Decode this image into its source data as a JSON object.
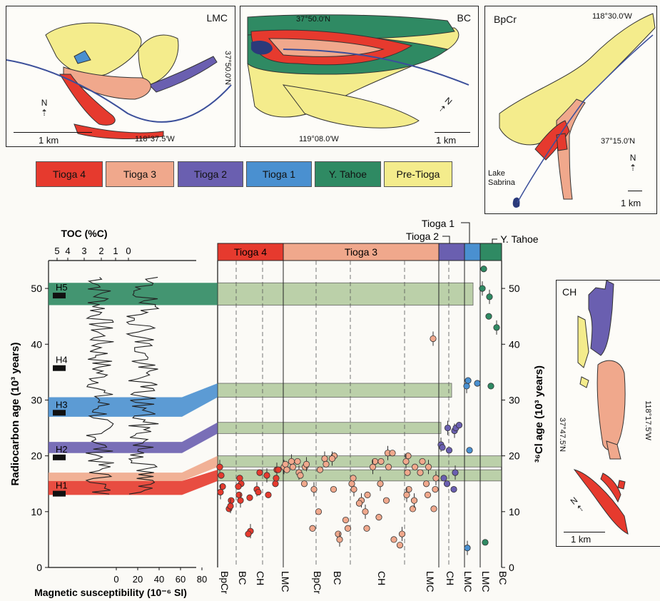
{
  "maps": {
    "lmc": {
      "title": "LMC",
      "lat": "37°50.0′N",
      "lon": "118°37.5′W",
      "scale": "1 km",
      "north": "N"
    },
    "bc": {
      "title": "BC",
      "lat": "37°50.0′N",
      "lon": "119°08.0′W",
      "scale": "1 km",
      "north": "N"
    },
    "bpcr": {
      "title": "BpCr",
      "lon": "118°30.0′W",
      "lat": "37°15.0′N",
      "lake": "Lake Sabrina",
      "scale": "1 km",
      "north": "N"
    },
    "ch": {
      "title": "CH",
      "lat": "37°47.5′N",
      "lon": "118°17.5′W",
      "scale": "1 km",
      "north": "N"
    }
  },
  "legend": [
    {
      "label": "Tioga 4",
      "color": "#e63a2e"
    },
    {
      "label": "Tioga 3",
      "color": "#f0a88c"
    },
    {
      "label": "Tioga 2",
      "color": "#6a5fb0"
    },
    {
      "label": "Tioga 1",
      "color": "#4a90d0"
    },
    {
      "label": "Y. Tahoe",
      "color": "#2f8a63"
    },
    {
      "label": "Pre-Tioga",
      "color": "#f4ec8c"
    }
  ],
  "chart": {
    "toc_label": "TOC (%C)",
    "toc_ticks": [
      "5",
      "4",
      "3",
      "2",
      "1",
      "0"
    ],
    "ms_label": "Magnetic susceptibility (10⁻⁶ SI)",
    "ms_ticks": [
      "0",
      "20",
      "40",
      "60",
      "80"
    ],
    "y_left_label": "Radiocarbon age (10³ years)",
    "y_right_label": "³⁶Cl age (10³ years)",
    "y_ticks": [
      "0",
      "10",
      "20",
      "30",
      "40",
      "50"
    ],
    "h_events": [
      "H5",
      "H4",
      "H3",
      "H2",
      "H1"
    ],
    "stage_header": [
      {
        "label": "Tioga 4",
        "color": "#e63a2e"
      },
      {
        "label": "Tioga 3",
        "color": "#f0a88c"
      },
      {
        "label": "",
        "color": "#6a5fb0"
      },
      {
        "label": "",
        "color": "#4a90d0"
      },
      {
        "label": "",
        "color": "#2f8a63"
      }
    ],
    "callouts": [
      "Tioga 1",
      "Tioga 2",
      "Y. Tahoe"
    ],
    "x_labels": [
      "BpCr",
      "BC",
      "CH",
      "LMC",
      "BpCr",
      "BC",
      "CH",
      "LMC",
      "CH",
      "LMC",
      "LMC",
      "BC"
    ]
  },
  "chart_data": {
    "type": "scatter",
    "title": "",
    "xlabel": "",
    "ylabel": "³⁶Cl age (10³ years)",
    "ylim": [
      0,
      55
    ],
    "series": [
      {
        "name": "Tioga 4",
        "color": "#e63a2e",
        "points": [
          [
            1,
            18.0
          ],
          [
            1,
            16.5
          ],
          [
            1,
            14.5
          ],
          [
            1,
            13.5
          ],
          [
            2,
            12.0
          ],
          [
            2,
            10.5
          ],
          [
            2,
            11.0
          ],
          [
            3,
            15.0
          ],
          [
            3,
            13.0
          ],
          [
            3,
            12.0
          ],
          [
            3,
            14.5
          ],
          [
            3,
            16.0
          ],
          [
            4,
            6.5
          ],
          [
            4,
            6.0
          ],
          [
            4,
            12.5
          ],
          [
            5,
            14.0
          ],
          [
            5,
            13.5
          ],
          [
            5,
            17.0
          ],
          [
            6,
            16.5
          ],
          [
            6,
            13.0
          ],
          [
            7,
            15.0
          ],
          [
            7,
            17.5
          ],
          [
            7,
            17.5
          ],
          [
            7,
            16.0
          ]
        ]
      },
      {
        "name": "Tioga 3",
        "color": "#f0a88c",
        "points": [
          [
            8,
            18.0
          ],
          [
            8,
            18.5
          ],
          [
            8,
            17.5
          ],
          [
            9,
            19.0
          ],
          [
            9,
            18.0
          ],
          [
            10,
            19.0
          ],
          [
            10,
            17.0
          ],
          [
            10,
            16.5
          ],
          [
            11,
            18.0
          ],
          [
            11,
            18.5
          ],
          [
            11,
            15.0
          ],
          [
            12,
            7.0
          ],
          [
            12,
            14.0
          ],
          [
            13,
            10.0
          ],
          [
            13,
            17.5
          ],
          [
            14,
            19.5
          ],
          [
            14,
            18.5
          ],
          [
            15,
            20.0
          ],
          [
            15,
            19.5
          ],
          [
            15,
            14.0
          ],
          [
            16,
            6.0
          ],
          [
            16,
            5.0
          ],
          [
            17,
            7.0
          ],
          [
            17,
            8.5
          ],
          [
            18,
            14.0
          ],
          [
            18,
            15.0
          ],
          [
            18,
            16.0
          ],
          [
            19,
            12.0
          ],
          [
            19,
            11.5
          ],
          [
            20,
            13.0
          ],
          [
            20,
            10.0
          ],
          [
            20,
            7.0
          ],
          [
            21,
            19.0
          ],
          [
            21,
            18.0
          ],
          [
            22,
            19.0
          ],
          [
            22,
            9.0
          ],
          [
            22,
            15.0
          ],
          [
            23,
            18.0
          ],
          [
            23,
            12.0
          ],
          [
            23,
            20.5
          ],
          [
            24,
            20.5
          ],
          [
            24,
            5.0
          ],
          [
            25,
            6.0
          ],
          [
            25,
            4.0
          ],
          [
            26,
            20.0
          ],
          [
            26,
            19.0
          ],
          [
            26,
            17.0
          ],
          [
            26,
            14.0
          ],
          [
            26,
            13.0
          ],
          [
            27,
            18.0
          ],
          [
            27,
            10.5
          ],
          [
            27,
            12.0
          ],
          [
            28,
            19.0
          ],
          [
            28,
            17.0
          ],
          [
            29,
            18.0
          ],
          [
            29,
            15.0
          ],
          [
            29,
            13.0
          ],
          [
            30,
            16.0
          ],
          [
            30,
            10.5
          ],
          [
            30,
            14.0
          ],
          [
            30,
            41.0
          ]
        ]
      },
      {
        "name": "Tioga 2",
        "color": "#6a5fb0",
        "points": [
          [
            31,
            22.0
          ],
          [
            31,
            21.5
          ],
          [
            31,
            16.0
          ],
          [
            32,
            25.0
          ],
          [
            32,
            21.0
          ],
          [
            32,
            15.0
          ],
          [
            33,
            24.5
          ],
          [
            33,
            25.0
          ],
          [
            33,
            14.0
          ],
          [
            33,
            17.0
          ],
          [
            34,
            25.5
          ]
        ]
      },
      {
        "name": "Tioga 1",
        "color": "#4a90d0",
        "points": [
          [
            35,
            32.5
          ],
          [
            35,
            33.5
          ],
          [
            35,
            21.0
          ],
          [
            35,
            3.5
          ],
          [
            36,
            33.0
          ]
        ]
      },
      {
        "name": "Y. Tahoe",
        "color": "#2f8a63",
        "points": [
          [
            37,
            50.0
          ],
          [
            37,
            53.5
          ],
          [
            37,
            4.5
          ],
          [
            38,
            48.5
          ],
          [
            38,
            32.5
          ],
          [
            38,
            45.0
          ],
          [
            39,
            43.0
          ]
        ]
      }
    ],
    "bands": [
      {
        "name": "H5",
        "ymin": 47,
        "ymax": 51,
        "color": "#2f8a63"
      },
      {
        "name": "H3",
        "ymin": 27,
        "ymax": 30.5,
        "color": "#4a90d0"
      },
      {
        "name": "H2",
        "ymin": 20.5,
        "ymax": 22.5,
        "color": "#6a5fb0"
      },
      {
        "name": "",
        "ymin": 15.5,
        "ymax": 17,
        "color": "#f0a88c"
      },
      {
        "name": "H1",
        "ymin": 13,
        "ymax": 15.5,
        "color": "#e63a2e"
      }
    ],
    "green_bands": [
      [
        47,
        51
      ],
      [
        30.5,
        33
      ],
      [
        24,
        26
      ],
      [
        18,
        20
      ],
      [
        15.5,
        17.5
      ]
    ]
  }
}
